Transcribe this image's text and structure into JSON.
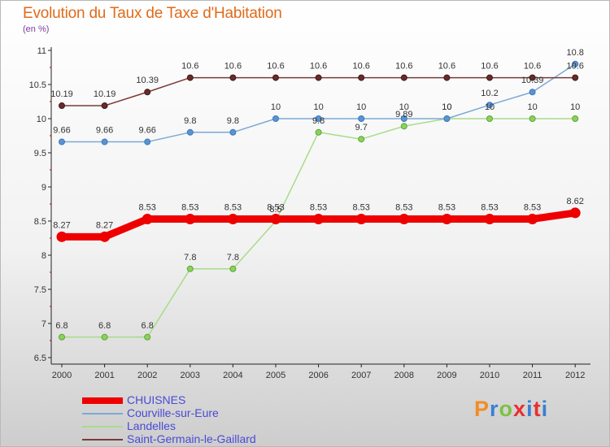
{
  "title": "Evolution du Taux de Taxe d'Habitation",
  "unit_label": "(en %)",
  "brand": "Proxiti",
  "brand_colors": [
    "#f28c28",
    "#3a7fd5",
    "#7cc242",
    "#e8302d",
    "#3a7fd5",
    "#e8302d",
    "#3a7fd5"
  ],
  "chart_data": {
    "type": "line",
    "x": [
      "2000",
      "2001",
      "2002",
      "2003",
      "2004",
      "2005",
      "2006",
      "2007",
      "2008",
      "2009",
      "2010",
      "2011",
      "2012"
    ],
    "ylim": [
      6.5,
      11
    ],
    "yticks": [
      "6.5",
      "7",
      "7.5",
      "8",
      "8.5",
      "9",
      "9.5",
      "10",
      "10.5",
      "11"
    ],
    "grid": false,
    "legend_position": "bottom-left",
    "series": [
      {
        "name": "CHUISNES",
        "color": "#ee0000",
        "values": [
          8.27,
          8.27,
          8.53,
          8.53,
          8.53,
          8.53,
          8.53,
          8.53,
          8.53,
          8.53,
          8.53,
          8.53,
          8.62
        ],
        "labels": [
          "8.27",
          "8.27",
          "8.53",
          "8.53",
          "8.53",
          "8.53",
          "8.53",
          "8.53",
          "8.53",
          "8.53",
          "8.53",
          "8.53",
          "8.62"
        ]
      },
      {
        "name": "Courville-sur-Eure",
        "color": "#7aa9d6",
        "values": [
          9.66,
          9.66,
          9.66,
          9.8,
          9.8,
          10,
          10,
          10,
          10,
          10,
          10.2,
          10.39,
          10.8
        ],
        "labels": [
          "9.66",
          "9.66",
          "9.66",
          "9.8",
          "9.8",
          "10",
          "10",
          "10",
          "10",
          "10",
          "10.2",
          "10.39",
          "10.8"
        ]
      },
      {
        "name": "Landelles",
        "color": "#a8dc8a",
        "values": [
          6.8,
          6.8,
          6.8,
          7.8,
          7.8,
          8.5,
          9.8,
          9.7,
          9.89,
          10,
          10,
          10,
          10
        ],
        "labels": [
          "6.8",
          "6.8",
          "6.8",
          "7.8",
          "7.8",
          "8.5",
          "9.8",
          "9.7",
          "9.89",
          "10",
          "10",
          "10",
          "10"
        ]
      },
      {
        "name": "Saint-Germain-le-Gaillard",
        "color": "#7a3a3a",
        "values": [
          10.19,
          10.19,
          10.39,
          10.6,
          10.6,
          10.6,
          10.6,
          10.6,
          10.6,
          10.6,
          10.6,
          10.6,
          10.6
        ],
        "labels": [
          "10.19",
          "10.19",
          "10.39",
          "10.6",
          "10.6",
          "10.6",
          "10.6",
          "10.6",
          "10.6",
          "10.6",
          "10.6",
          "10.6",
          "10.6"
        ]
      }
    ]
  }
}
